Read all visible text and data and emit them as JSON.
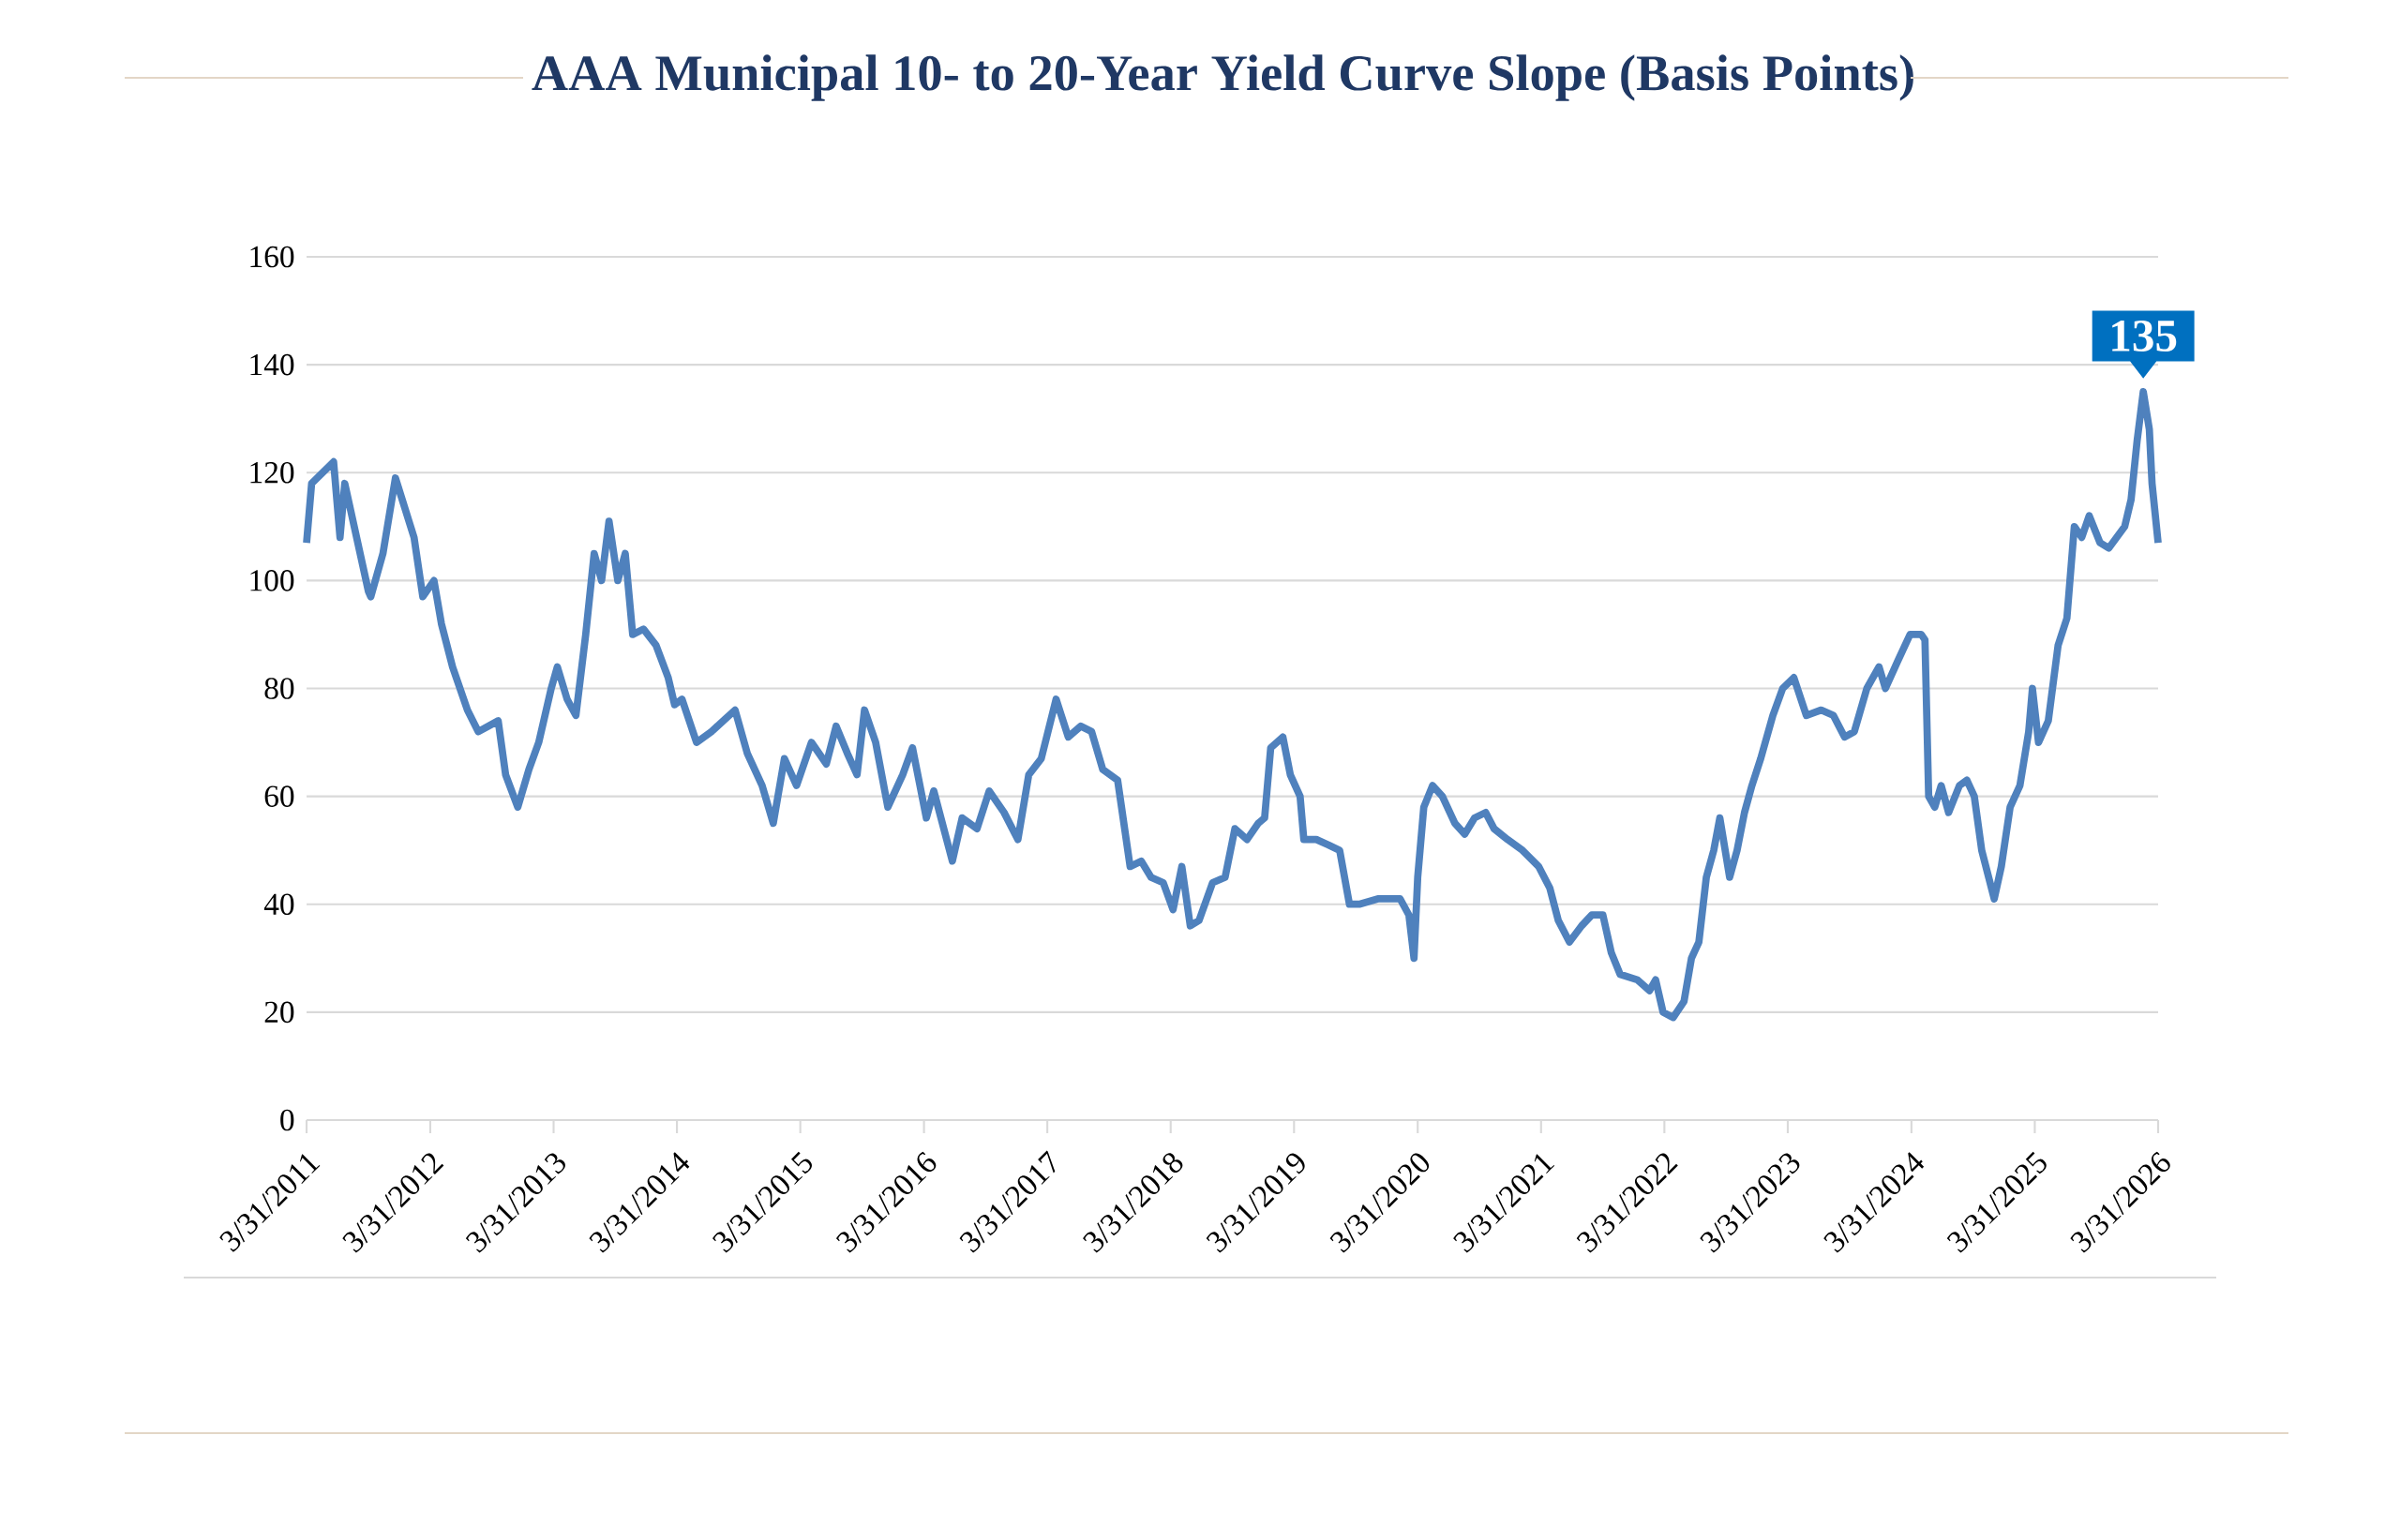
{
  "chart_data": {
    "type": "line",
    "title": "AAA Municipal 10- to 20-Year Yield Curve Slope (Basis Points)",
    "x": [
      "2011-03-31",
      "2011-04-15",
      "2011-06-19",
      "2011-07-08",
      "2011-07-22",
      "2011-09-30",
      "2011-10-07",
      "2011-11-12",
      "2011-12-19",
      "2012-02-12",
      "2012-03-09",
      "2012-04-11",
      "2012-05-03",
      "2012-06-05",
      "2012-07-19",
      "2012-08-20",
      "2012-10-18",
      "2012-11-09",
      "2012-12-15",
      "2013-01-17",
      "2013-02-15",
      "2013-03-24",
      "2013-04-11",
      "2013-05-10",
      "2013-06-05",
      "2013-07-04",
      "2013-07-29",
      "2013-08-20",
      "2013-09-11",
      "2013-10-07",
      "2013-10-29",
      "2013-11-20",
      "2013-12-22",
      "2014-01-28",
      "2014-03-05",
      "2014-03-24",
      "2014-04-15",
      "2014-05-28",
      "2014-07-11",
      "2014-09-19",
      "2014-10-25",
      "2014-12-08",
      "2015-01-10",
      "2015-02-12",
      "2015-03-20",
      "2015-05-03",
      "2015-06-16",
      "2015-07-15",
      "2015-08-17",
      "2015-09-15",
      "2015-10-07",
      "2015-11-09",
      "2015-12-15",
      "2016-01-28",
      "2016-02-26",
      "2016-04-07",
      "2016-04-29",
      "2016-06-23",
      "2016-07-22",
      "2016-09-04",
      "2016-10-10",
      "2016-11-23",
      "2017-01-03",
      "2017-02-04",
      "2017-03-13",
      "2017-04-26",
      "2017-06-01",
      "2017-07-08",
      "2017-08-09",
      "2017-09-11",
      "2017-10-25",
      "2017-12-01",
      "2018-01-03",
      "2018-02-01",
      "2018-03-09",
      "2018-04-07",
      "2018-05-03",
      "2018-05-28",
      "2018-06-23",
      "2018-08-02",
      "2018-09-08",
      "2018-10-07",
      "2018-11-12",
      "2018-12-15",
      "2019-01-03",
      "2019-01-21",
      "2019-02-26",
      "2019-03-20",
      "2019-04-18",
      "2019-04-29",
      "2019-06-05",
      "2019-07-11",
      "2019-08-13",
      "2019-09-11",
      "2019-10-10",
      "2019-12-04",
      "2020-02-08",
      "2020-03-05",
      "2020-03-20",
      "2020-03-31",
      "2020-04-18",
      "2020-05-14",
      "2020-06-12",
      "2020-07-19",
      "2020-08-17",
      "2020-09-15",
      "2020-10-18",
      "2020-11-12",
      "2020-12-22",
      "2021-02-04",
      "2021-03-24",
      "2021-04-26",
      "2021-05-21",
      "2021-06-23",
      "2021-07-29",
      "2021-08-28",
      "2021-09-30",
      "2021-10-25",
      "2021-11-20",
      "2022-01-10",
      "2022-02-15",
      "2022-03-05",
      "2022-03-27",
      "2022-04-26",
      "2022-05-28",
      "2022-06-19",
      "2022-07-11",
      "2022-08-02",
      "2022-08-24",
      "2022-09-11",
      "2022-10-10",
      "2022-11-01",
      "2022-11-23",
      "2022-12-15",
      "2023-01-10",
      "2023-02-15",
      "2023-03-16",
      "2023-04-18",
      "2023-05-25",
      "2023-07-08",
      "2023-08-13",
      "2023-09-15",
      "2023-10-14",
      "2023-11-20",
      "2023-12-26",
      "2024-01-14",
      "2024-02-19",
      "2024-03-27",
      "2024-04-29",
      "2024-05-10",
      "2024-05-21",
      "2024-06-08",
      "2024-06-27",
      "2024-07-19",
      "2024-08-20",
      "2024-09-11",
      "2024-10-03",
      "2024-10-25",
      "2024-12-01",
      "2024-12-22",
      "2025-01-17",
      "2025-02-15",
      "2025-03-13",
      "2025-03-24",
      "2025-04-11",
      "2025-05-10",
      "2025-06-08",
      "2025-07-04",
      "2025-07-26",
      "2025-08-17",
      "2025-09-08",
      "2025-10-10",
      "2025-11-05",
      "2025-12-22",
      "2026-01-10",
      "2026-01-28",
      "2026-02-15",
      "2026-03-05",
      "2026-03-13",
      "2026-03-31"
    ],
    "series": [
      {
        "color": "#4f81bd",
        "values": [
          107,
          118,
          122,
          108,
          118,
          98,
          97,
          105,
          119,
          108,
          97,
          100,
          92,
          84,
          76,
          72,
          74,
          64,
          58,
          65,
          70,
          80,
          84,
          78,
          75,
          90,
          105,
          100,
          111,
          100,
          105,
          90,
          91,
          88,
          82,
          77,
          78,
          70,
          72,
          76,
          68,
          62,
          55,
          67,
          62,
          70,
          66,
          73,
          68,
          64,
          76,
          70,
          58,
          64,
          69,
          56,
          61,
          48,
          56,
          54,
          61,
          57,
          52,
          64,
          67,
          78,
          71,
          73,
          72,
          65,
          63,
          47,
          48,
          45,
          44,
          39,
          47,
          36,
          37,
          44,
          45,
          54,
          52,
          55,
          56,
          69,
          71,
          64,
          60,
          52,
          52,
          51,
          50,
          40,
          40,
          41,
          41,
          38,
          30,
          45,
          58,
          62,
          60,
          55,
          53,
          56,
          57,
          54,
          52,
          50,
          47,
          43,
          37,
          33,
          36,
          38,
          38,
          31,
          27,
          26,
          24,
          26,
          20,
          19,
          22,
          30,
          33,
          45,
          50,
          56,
          45,
          50,
          57,
          62,
          67,
          75,
          80,
          82,
          75,
          76,
          75,
          71,
          72,
          80,
          84,
          80,
          85,
          90,
          90,
          89,
          60,
          58,
          62,
          57,
          62,
          63,
          60,
          50,
          41,
          47,
          58,
          62,
          72,
          80,
          70,
          74,
          88,
          93,
          110,
          108,
          112,
          107,
          106,
          110,
          115,
          126,
          135,
          128,
          118,
          107
        ]
      }
    ],
    "xlim": [
      "2011-03-31",
      "2026-03-31"
    ],
    "xticks": [
      {
        "value": "2011-03-31",
        "label": "3/31/2011"
      },
      {
        "value": "2012-03-31",
        "label": "3/31/2012"
      },
      {
        "value": "2013-03-31",
        "label": "3/31/2013"
      },
      {
        "value": "2014-03-31",
        "label": "3/31/2014"
      },
      {
        "value": "2015-03-31",
        "label": "3/31/2015"
      },
      {
        "value": "2016-03-31",
        "label": "3/31/2016"
      },
      {
        "value": "2017-03-31",
        "label": "3/31/2017"
      },
      {
        "value": "2018-03-31",
        "label": "3/31/2018"
      },
      {
        "value": "2019-03-31",
        "label": "3/31/2019"
      },
      {
        "value": "2020-03-31",
        "label": "3/31/2020"
      },
      {
        "value": "2021-03-31",
        "label": "3/31/2021"
      },
      {
        "value": "2022-03-31",
        "label": "3/31/2022"
      },
      {
        "value": "2023-03-31",
        "label": "3/31/2023"
      },
      {
        "value": "2024-03-31",
        "label": "3/31/2024"
      },
      {
        "value": "2025-03-31",
        "label": "3/31/2025"
      },
      {
        "value": "2026-03-31",
        "label": "3/31/2026"
      }
    ],
    "ylim": [
      0,
      160
    ],
    "yticks": [
      0,
      20,
      40,
      60,
      80,
      100,
      120,
      140,
      160
    ],
    "grid": "y",
    "annotations": [
      {
        "text": "135",
        "x": "2026-02-15",
        "y": 135
      }
    ]
  }
}
